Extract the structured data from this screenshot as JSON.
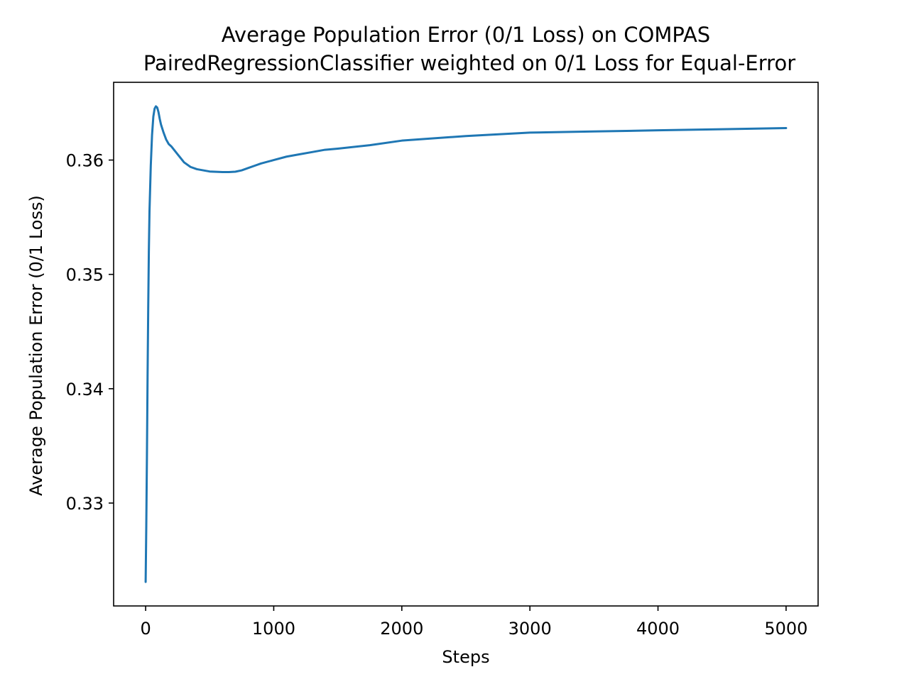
{
  "chart_data": {
    "type": "line",
    "title": "Average Population Error (0/1 Loss) on COMPAS",
    "subtitle": "PairedRegressionClassifier weighted on 0/1 Loss for Equal-Error",
    "xlabel": "Steps",
    "ylabel": "Average Population Error (0/1 Loss)",
    "xlim": [
      -250,
      5250
    ],
    "ylim": [
      0.321,
      0.3668
    ],
    "xticks": [
      0,
      1000,
      2000,
      3000,
      4000,
      5000
    ],
    "xtick_labels": [
      "0",
      "1000",
      "2000",
      "3000",
      "4000",
      "5000"
    ],
    "yticks": [
      0.33,
      0.34,
      0.35,
      0.36
    ],
    "ytick_labels": [
      "0.33",
      "0.34",
      "0.35",
      "0.36"
    ],
    "grid": false,
    "legend": "none",
    "series_color": "#1f77b4",
    "series": [
      {
        "x": [
          0,
          5,
          10,
          15,
          20,
          25,
          30,
          40,
          50,
          60,
          70,
          80,
          90,
          100,
          110,
          120,
          140,
          160,
          180,
          200,
          250,
          300,
          350,
          400,
          450,
          500,
          550,
          600,
          650,
          700,
          750,
          800,
          850,
          900,
          1000,
          1100,
          1200,
          1300,
          1400,
          1500,
          1750,
          2000,
          2500,
          3000,
          3500,
          4000,
          4500,
          5000
        ],
        "y": [
          0.3231,
          0.328,
          0.334,
          0.341,
          0.347,
          0.352,
          0.3555,
          0.3595,
          0.3622,
          0.3638,
          0.3645,
          0.3647,
          0.3646,
          0.3642,
          0.3636,
          0.3631,
          0.3624,
          0.3618,
          0.3614,
          0.3612,
          0.3605,
          0.3598,
          0.3594,
          0.3592,
          0.3591,
          0.359,
          0.35897,
          0.35895,
          0.35895,
          0.35898,
          0.3591,
          0.3593,
          0.3595,
          0.3597,
          0.36,
          0.3603,
          0.3605,
          0.3607,
          0.3609,
          0.361,
          0.3613,
          0.3617,
          0.3621,
          0.3624,
          0.3625,
          0.3626,
          0.3627,
          0.3628
        ]
      }
    ]
  }
}
